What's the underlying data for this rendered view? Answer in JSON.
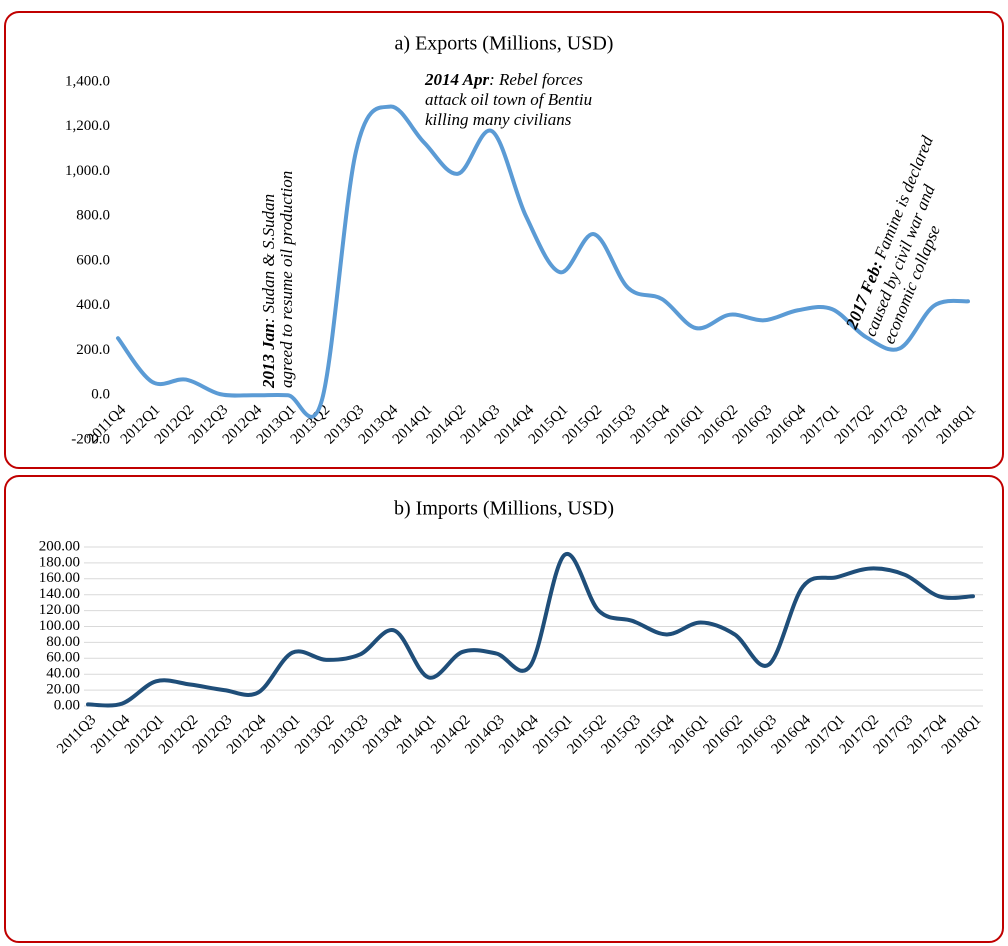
{
  "chart_data": [
    {
      "type": "line",
      "title": "a) Exports (Millions, USD)",
      "categories": [
        "2011Q4",
        "2012Q1",
        "2012Q2",
        "2012Q3",
        "2012Q4",
        "2013Q1",
        "2013Q2",
        "2013Q3",
        "2013Q4",
        "2014Q1",
        "2014Q2",
        "2014Q3",
        "2014Q4",
        "2015Q1",
        "2015Q2",
        "2015Q3",
        "2015Q4",
        "2016Q1",
        "2016Q2",
        "2016Q3",
        "2016Q4",
        "2017Q1",
        "2017Q2",
        "2017Q3",
        "2017Q4",
        "2018Q1"
      ],
      "series": [
        {
          "name": "Exports",
          "color": "#5b9bd5",
          "values": [
            255,
            60,
            70,
            5,
            0,
            0,
            -20,
            1090,
            1290,
            1130,
            990,
            1180,
            800,
            550,
            720,
            480,
            430,
            300,
            360,
            335,
            380,
            385,
            260,
            210,
            400,
            420
          ]
        }
      ],
      "ylim": [
        -200,
        1400
      ],
      "yticks": [
        {
          "value": -200,
          "label": "-200.0"
        },
        {
          "value": 0,
          "label": "0.0"
        },
        {
          "value": 200,
          "label": "200.0"
        },
        {
          "value": 400,
          "label": "400.0"
        },
        {
          "value": 600,
          "label": "600.0"
        },
        {
          "value": 800,
          "label": "800.0"
        },
        {
          "value": 1000,
          "label": "1,000.0"
        },
        {
          "value": 1200,
          "label": "1,200.0"
        },
        {
          "value": 1400,
          "label": "1,400.0"
        }
      ],
      "grid": false,
      "annotations": [
        {
          "bold": "2013 Jan",
          "lines": [
            ": Sudan & S.Sudan",
            "agreed to resume oil production"
          ]
        },
        {
          "bold": "2014 Apr",
          "lines": [
            ": Rebel forces",
            "attack oil town of Bentiu",
            "killing many civilians"
          ]
        },
        {
          "bold": "2017 Feb:",
          "lines": [
            " Famine is declared",
            "caused by civil war and",
            "economic collapse"
          ]
        }
      ]
    },
    {
      "type": "line",
      "title": "b) Imports (Millions, USD)",
      "categories": [
        "2011Q3",
        "2011Q4",
        "2012Q1",
        "2012Q2",
        "2012Q3",
        "2012Q4",
        "2013Q1",
        "2013Q2",
        "2013Q3",
        "2013Q4",
        "2014Q1",
        "2014Q2",
        "2014Q3",
        "2014Q4",
        "2015Q1",
        "2015Q2",
        "2015Q3",
        "2015Q4",
        "2016Q1",
        "2016Q2",
        "2016Q3",
        "2016Q4",
        "2017Q1",
        "2017Q2",
        "2017Q3",
        "2017Q4",
        "2018Q1"
      ],
      "series": [
        {
          "name": "Imports",
          "color": "#1f4e79",
          "values": [
            2,
            3,
            31,
            27,
            20,
            17,
            67,
            58,
            65,
            95,
            36,
            68,
            66,
            51,
            190,
            120,
            107,
            90,
            105,
            90,
            52,
            150,
            162,
            173,
            165,
            138,
            138
          ]
        }
      ],
      "ylim": [
        0,
        200
      ],
      "yticks": [
        {
          "value": 0,
          "label": "0.00"
        },
        {
          "value": 20,
          "label": "20.00"
        },
        {
          "value": 40,
          "label": "40.00"
        },
        {
          "value": 60,
          "label": "60.00"
        },
        {
          "value": 80,
          "label": "80.00"
        },
        {
          "value": 100,
          "label": "100.00"
        },
        {
          "value": 120,
          "label": "120.00"
        },
        {
          "value": 140,
          "label": "140.00"
        },
        {
          "value": 160,
          "label": "160.00"
        },
        {
          "value": 180,
          "label": "180.00"
        },
        {
          "value": 200,
          "label": "200.00"
        }
      ],
      "grid": true
    }
  ]
}
